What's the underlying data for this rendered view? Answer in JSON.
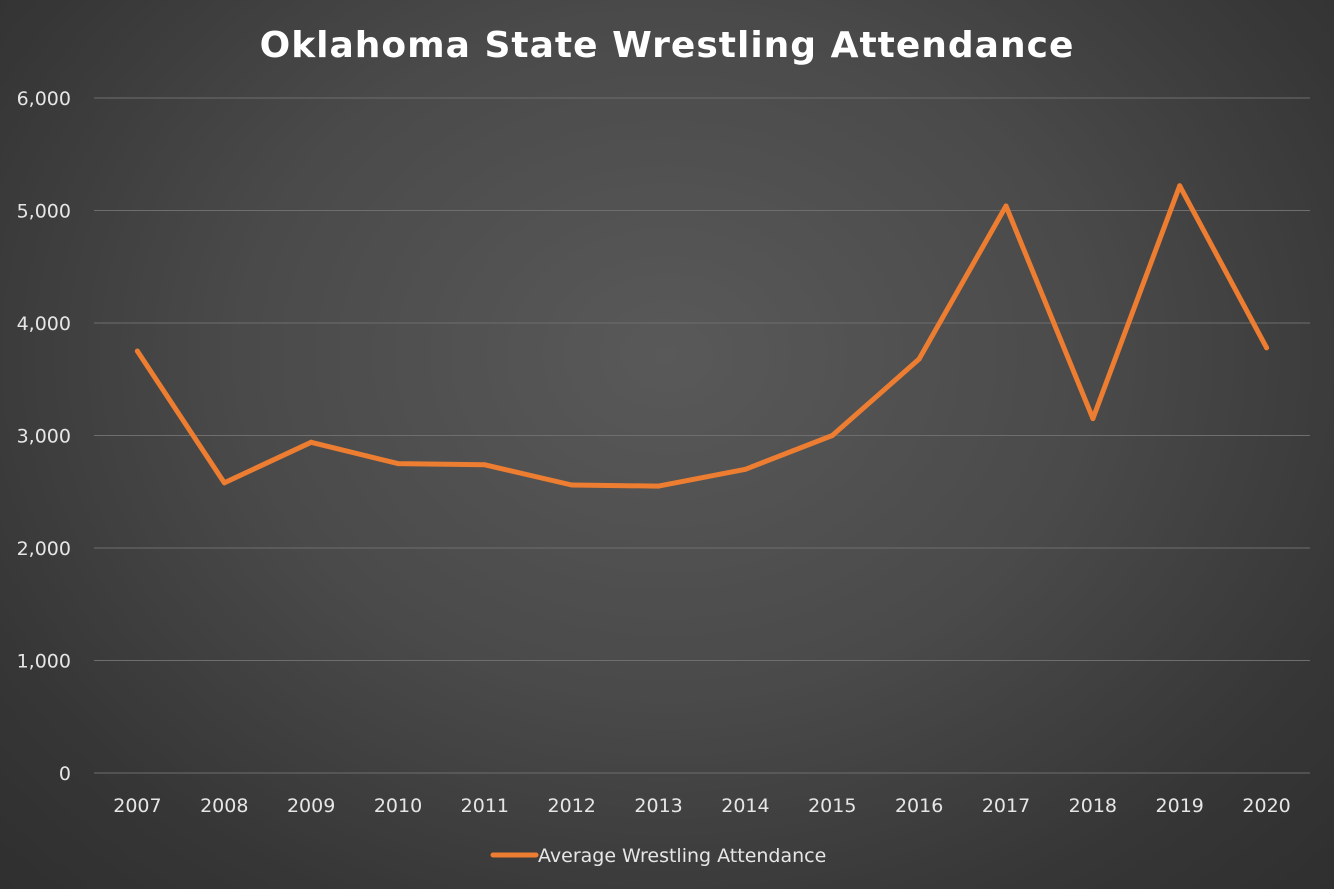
{
  "chart_data": {
    "type": "line",
    "title": "Oklahoma State Wrestling Attendance",
    "xlabel": "",
    "ylabel": "",
    "categories": [
      "2007",
      "2008",
      "2009",
      "2010",
      "2011",
      "2012",
      "2013",
      "2014",
      "2015",
      "2016",
      "2017",
      "2018",
      "2019",
      "2020"
    ],
    "series": [
      {
        "name": "Average Wrestling Attendance",
        "color": "#ed7d31",
        "values": [
          3750,
          2580,
          2940,
          2750,
          2740,
          2560,
          2550,
          2700,
          3000,
          3680,
          5040,
          3150,
          5220,
          3780
        ]
      }
    ],
    "ylim": [
      0,
      6000
    ],
    "yticks": [
      0,
      1000,
      2000,
      3000,
      4000,
      5000,
      6000
    ],
    "ytick_labels": [
      "0",
      "1,000",
      "2,000",
      "3,000",
      "4,000",
      "5,000",
      "6,000"
    ],
    "grid": true,
    "legend_position": "bottom"
  }
}
